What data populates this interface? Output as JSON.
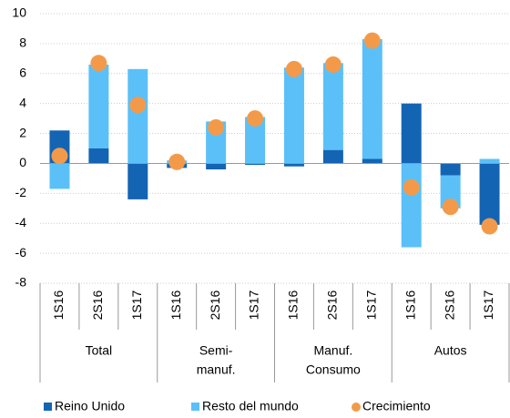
{
  "chart_data": {
    "type": "bar",
    "groups": [
      {
        "name": [
          "Total"
        ],
        "categories": [
          "1S16",
          "2S16",
          "1S17"
        ]
      },
      {
        "name": [
          "Semi-",
          "manuf."
        ],
        "categories": [
          "1S16",
          "2S16",
          "1S17"
        ]
      },
      {
        "name": [
          "Manuf.",
          "Consumo"
        ],
        "categories": [
          "1S16",
          "2S16",
          "1S17"
        ]
      },
      {
        "name": [
          "Autos"
        ],
        "categories": [
          "1S16",
          "2S16",
          "1S17"
        ]
      }
    ],
    "series": [
      {
        "name": "Reino Unido",
        "type": "bar",
        "color": "#1464b4",
        "values": [
          2.2,
          1.0,
          -2.4,
          -0.3,
          -0.4,
          -0.1,
          -0.2,
          0.9,
          0.3,
          4.0,
          -0.8,
          -4.1
        ]
      },
      {
        "name": "Resto del mundo",
        "type": "bar",
        "color": "#5bc0f8",
        "values": [
          -1.7,
          5.6,
          6.3,
          0.2,
          2.8,
          3.1,
          6.4,
          5.8,
          8.0,
          -5.6,
          -2.2,
          0.3
        ]
      },
      {
        "name": "Crecimiento",
        "type": "scatter",
        "color": "#f39a4a",
        "values": [
          0.5,
          6.7,
          3.9,
          0.1,
          2.4,
          3.0,
          6.3,
          6.6,
          8.2,
          -1.6,
          -2.9,
          -4.2
        ]
      }
    ],
    "ylim": [
      -8,
      10
    ],
    "yticks": [
      -8,
      -6,
      -4,
      -2,
      0,
      2,
      4,
      6,
      8,
      10
    ],
    "grid": true
  }
}
